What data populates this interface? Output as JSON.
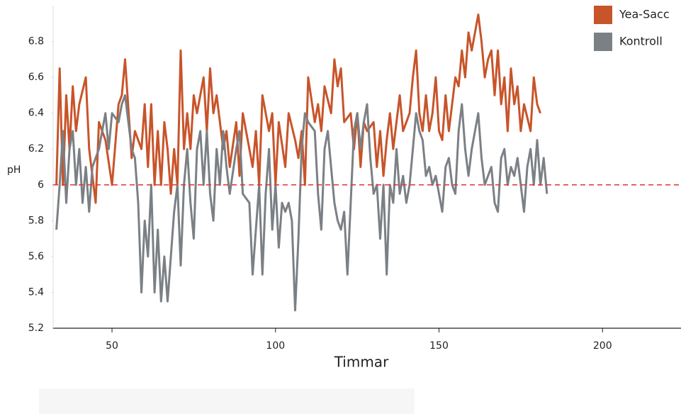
{
  "chart_data": {
    "type": "line",
    "x_label": "Timmar",
    "y_label": "pH",
    "xlim": [
      32,
      224
    ],
    "ylim": [
      5.2,
      7.0
    ],
    "xticks": [
      50,
      100,
      150,
      200
    ],
    "yticks": [
      5.2,
      5.4,
      5.6,
      5.8,
      6.0,
      6.2,
      6.4,
      6.6,
      6.8
    ],
    "reference_line": {
      "value": 6.0,
      "color": "#e0332e"
    },
    "legend": "top-right",
    "series": [
      {
        "name": "Yea-Sacc",
        "color": "#c8542a",
        "x": [
          33,
          34,
          35,
          36,
          37,
          38,
          39,
          40,
          42,
          43,
          45,
          46,
          48,
          50,
          52,
          53,
          54,
          56,
          57,
          59,
          60,
          61,
          62,
          63,
          64,
          65,
          66,
          67,
          68,
          69,
          70,
          71,
          72,
          73,
          74,
          75,
          76,
          78,
          79,
          80,
          81,
          82,
          84,
          85,
          86,
          88,
          89,
          90,
          92,
          93,
          94,
          95,
          96,
          98,
          99,
          100,
          101,
          103,
          104,
          106,
          107,
          108,
          109,
          110,
          112,
          113,
          114,
          115,
          117,
          118,
          119,
          120,
          121,
          123,
          124,
          125,
          126,
          127,
          128,
          130,
          131,
          132,
          133,
          134,
          135,
          136,
          137,
          138,
          139,
          140,
          141,
          142,
          143,
          144,
          145,
          146,
          147,
          148,
          149,
          150,
          151,
          152,
          153,
          154,
          155,
          156,
          157,
          158,
          159,
          160,
          161,
          162,
          163,
          164,
          165,
          166,
          167,
          168,
          169,
          170,
          171,
          172,
          173,
          174,
          175,
          176,
          178,
          179,
          180,
          181
        ],
        "values": [
          6.0,
          6.65,
          6.0,
          6.5,
          6.2,
          6.55,
          6.3,
          6.45,
          6.6,
          6.2,
          5.9,
          6.35,
          6.25,
          6.0,
          6.45,
          6.5,
          6.7,
          6.15,
          6.3,
          6.2,
          6.45,
          6.1,
          6.45,
          6.0,
          6.3,
          6.0,
          6.35,
          6.2,
          5.95,
          6.2,
          6.0,
          6.75,
          6.2,
          6.4,
          6.2,
          6.5,
          6.4,
          6.6,
          6.3,
          6.65,
          6.4,
          6.5,
          6.2,
          6.3,
          6.1,
          6.35,
          6.05,
          6.4,
          6.2,
          6.1,
          6.3,
          6.0,
          6.5,
          6.3,
          6.4,
          6.0,
          6.35,
          6.1,
          6.4,
          6.25,
          6.15,
          6.3,
          6.0,
          6.6,
          6.35,
          6.45,
          6.3,
          6.55,
          6.4,
          6.7,
          6.55,
          6.65,
          6.35,
          6.4,
          6.2,
          6.4,
          6.1,
          6.35,
          6.3,
          6.35,
          6.1,
          6.3,
          6.05,
          6.25,
          6.4,
          6.2,
          6.35,
          6.5,
          6.3,
          6.35,
          6.4,
          6.6,
          6.75,
          6.4,
          6.3,
          6.5,
          6.3,
          6.4,
          6.6,
          6.3,
          6.25,
          6.5,
          6.3,
          6.45,
          6.6,
          6.55,
          6.75,
          6.6,
          6.85,
          6.75,
          6.85,
          6.95,
          6.8,
          6.6,
          6.7,
          6.75,
          6.5,
          6.75,
          6.45,
          6.6,
          6.3,
          6.65,
          6.45,
          6.55,
          6.3,
          6.45,
          6.3,
          6.6,
          6.45,
          6.4
        ]
      },
      {
        "name": "Kontroll",
        "color": "#7b8085",
        "x": [
          33,
          34,
          35,
          36,
          37,
          38,
          39,
          40,
          41,
          42,
          43,
          44,
          46,
          48,
          49,
          50,
          52,
          53,
          54,
          56,
          57,
          58,
          59,
          60,
          61,
          62,
          63,
          64,
          65,
          66,
          67,
          68,
          69,
          70,
          71,
          72,
          73,
          74,
          75,
          76,
          77,
          78,
          79,
          80,
          81,
          82,
          83,
          84,
          85,
          86,
          88,
          89,
          90,
          92,
          93,
          95,
          96,
          97,
          98,
          99,
          100,
          101,
          102,
          103,
          104,
          105,
          106,
          107,
          108,
          109,
          110,
          112,
          113,
          114,
          115,
          116,
          117,
          118,
          119,
          120,
          121,
          122,
          123,
          124,
          125,
          126,
          127,
          128,
          129,
          130,
          131,
          132,
          133,
          134,
          135,
          136,
          137,
          138,
          139,
          140,
          141,
          142,
          143,
          144,
          145,
          146,
          147,
          148,
          149,
          150,
          151,
          152,
          153,
          154,
          155,
          156,
          157,
          158,
          159,
          160,
          161,
          162,
          163,
          164,
          165,
          166,
          167,
          168,
          169,
          170,
          171,
          172,
          173,
          174,
          175,
          176,
          177,
          178,
          179,
          180,
          181,
          182,
          183
        ],
        "values": [
          5.75,
          6.0,
          6.3,
          5.9,
          6.2,
          6.3,
          6.0,
          6.2,
          5.9,
          6.1,
          5.85,
          6.1,
          6.2,
          6.4,
          6.2,
          6.4,
          6.35,
          6.45,
          6.5,
          6.2,
          6.15,
          5.9,
          5.4,
          5.8,
          5.6,
          6.0,
          5.4,
          5.75,
          5.35,
          5.6,
          5.35,
          5.6,
          5.85,
          6.0,
          5.55,
          6.0,
          6.2,
          5.9,
          5.7,
          6.2,
          6.3,
          6.0,
          6.3,
          5.95,
          5.8,
          6.2,
          6.0,
          6.3,
          6.1,
          5.95,
          6.2,
          6.3,
          5.95,
          5.9,
          5.5,
          6.0,
          5.5,
          5.95,
          6.2,
          5.75,
          6.0,
          5.65,
          5.9,
          5.85,
          5.9,
          5.8,
          5.3,
          5.7,
          6.2,
          6.4,
          6.35,
          6.3,
          5.95,
          5.75,
          6.2,
          6.3,
          6.1,
          5.9,
          5.8,
          5.75,
          5.85,
          5.5,
          5.9,
          6.3,
          6.4,
          6.2,
          6.35,
          6.45,
          6.15,
          5.95,
          6.0,
          5.7,
          6.0,
          5.5,
          6.0,
          5.9,
          6.2,
          5.95,
          6.05,
          5.9,
          6.0,
          6.2,
          6.4,
          6.3,
          6.25,
          6.05,
          6.1,
          6.0,
          6.05,
          5.95,
          5.85,
          6.1,
          6.15,
          6.0,
          5.95,
          6.3,
          6.45,
          6.2,
          6.05,
          6.2,
          6.3,
          6.4,
          6.15,
          6.0,
          6.05,
          6.1,
          5.9,
          5.85,
          6.15,
          6.2,
          6.0,
          6.1,
          6.05,
          6.15,
          6.0,
          5.85,
          6.1,
          6.2,
          6.0,
          6.25,
          6.0,
          6.15,
          5.95
        ]
      }
    ]
  }
}
